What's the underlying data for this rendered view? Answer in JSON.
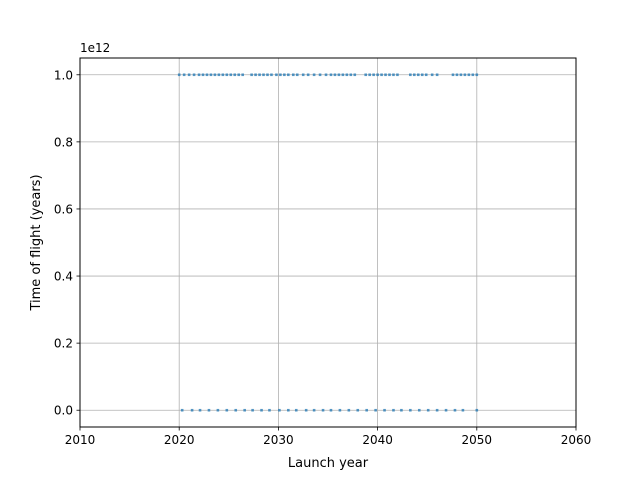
{
  "chart_data": {
    "type": "scatter",
    "title": "",
    "xlabel": "Launch year",
    "ylabel": "Time of flight (years)",
    "y_offset_label": "1e12",
    "xlim": [
      2010,
      2060
    ],
    "ylim": [
      -0.05,
      1.05
    ],
    "y_scale_multiplier": 1000000000000.0,
    "xticks": [
      2010,
      2020,
      2030,
      2040,
      2050,
      2060
    ],
    "xtick_labels": [
      "2010",
      "2020",
      "2030",
      "2040",
      "2050",
      "2060"
    ],
    "yticks": [
      0.0,
      0.2,
      0.4,
      0.6,
      0.8,
      1.0
    ],
    "ytick_labels": [
      "0.0",
      "0.2",
      "0.4",
      "0.6",
      "0.8",
      "1.0"
    ],
    "grid": true,
    "marker_color": "#1f77b4",
    "series": [
      {
        "x": [
          2020.0,
          2020.5,
          2021.0,
          2021.5,
          2022.0,
          2022.4,
          2022.8,
          2023.2,
          2023.6,
          2024.0,
          2024.4,
          2024.8,
          2025.2,
          2025.6,
          2026.0,
          2026.4,
          2027.3,
          2027.7,
          2028.1,
          2028.5,
          2028.9,
          2029.3,
          2029.8,
          2030.2,
          2030.6,
          2031.0,
          2031.5,
          2031.9,
          2032.5,
          2033.0,
          2033.6,
          2034.2,
          2034.8,
          2035.3,
          2035.7,
          2036.1,
          2036.5,
          2036.9,
          2037.3,
          2037.7,
          2038.8,
          2039.2,
          2039.6,
          2040.0,
          2040.4,
          2040.8,
          2041.2,
          2041.6,
          2042.0,
          2043.3,
          2043.7,
          2044.1,
          2044.5,
          2044.9,
          2045.5,
          2046.0,
          2047.6,
          2048.0,
          2048.4,
          2048.8,
          2049.2,
          2049.6,
          2050.0
        ],
        "y_value": 1.0
      },
      {
        "x": [
          2020.3,
          2021.3,
          2022.1,
          2023.0,
          2023.9,
          2024.8,
          2025.7,
          2026.6,
          2027.4,
          2028.3,
          2029.1,
          2030.1,
          2031.0,
          2031.8,
          2032.8,
          2033.6,
          2034.5,
          2035.3,
          2036.2,
          2037.1,
          2038.0,
          2038.9,
          2039.8,
          2040.7,
          2041.6,
          2042.4,
          2043.3,
          2044.2,
          2045.1,
          2046.0,
          2046.9,
          2047.8,
          2048.6,
          2050.0
        ],
        "y_value": 0.0
      }
    ]
  }
}
